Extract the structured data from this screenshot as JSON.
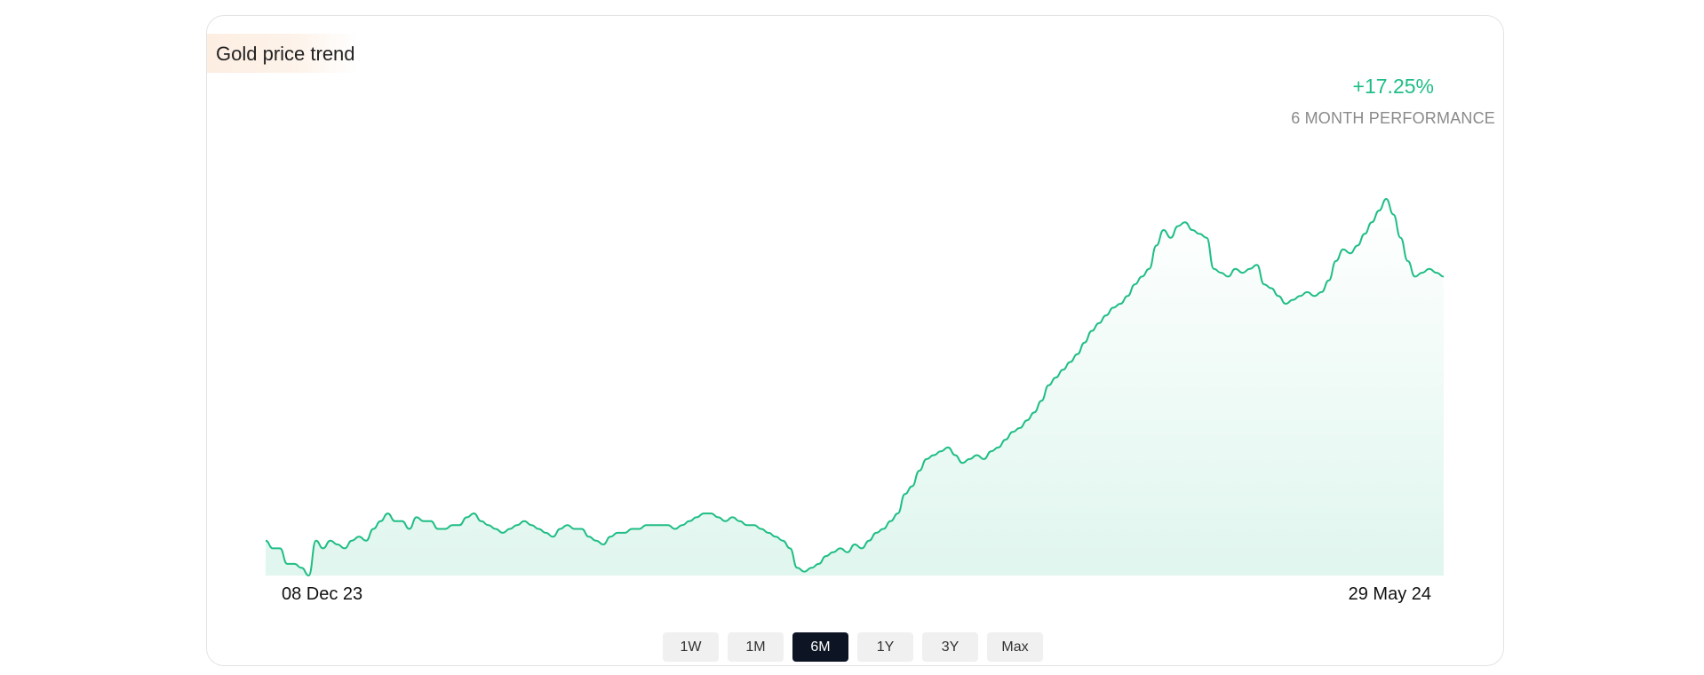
{
  "header": {
    "title": "Gold price trend",
    "performance_value": "+17.25%",
    "performance_label": "6 MONTH PERFORMANCE"
  },
  "colors": {
    "line": "#1fbe84",
    "positive": "#1fbe84",
    "active_range_bg": "#0d1524"
  },
  "range_selector": {
    "options": [
      "1W",
      "1M",
      "6M",
      "1Y",
      "3Y",
      "Max"
    ],
    "selected": "6M"
  },
  "chart_data": {
    "type": "area",
    "x_labels": [
      "08 Dec 23",
      "29 May 24"
    ],
    "series_normalized_note": "values read as relative price level, 0 = lowest point, 100 = highest point",
    "values": [
      12,
      10,
      10,
      6,
      6,
      5,
      3,
      12,
      10,
      12,
      11,
      10,
      12,
      13,
      12,
      15,
      17,
      19,
      17,
      17,
      15,
      18,
      17,
      17,
      15,
      15,
      16,
      16,
      18,
      19,
      17,
      16,
      15,
      14,
      15,
      16,
      17,
      16,
      15,
      14,
      13,
      15,
      16,
      15,
      15,
      13,
      12,
      11,
      13,
      14,
      14,
      15,
      15,
      16,
      16,
      16,
      16,
      15,
      16,
      17,
      18,
      19,
      19,
      18,
      17,
      18,
      17,
      16,
      16,
      15,
      14,
      13,
      12,
      10,
      5,
      4,
      5,
      6,
      8,
      9,
      10,
      9,
      11,
      10,
      12,
      14,
      15,
      17,
      19,
      24,
      26,
      30,
      33,
      34,
      35,
      36,
      34,
      32,
      33,
      34,
      33,
      35,
      36,
      38,
      40,
      41,
      43,
      45,
      48,
      52,
      54,
      56,
      58,
      60,
      63,
      66,
      68,
      70,
      72,
      73,
      75,
      78,
      80,
      82,
      88,
      92,
      90,
      93,
      94,
      92,
      91,
      90,
      82,
      81,
      80,
      82,
      81,
      82,
      83,
      78,
      77,
      75,
      73,
      74,
      75,
      76,
      75,
      76,
      79,
      84,
      87,
      86,
      88,
      91,
      94,
      97,
      100,
      96,
      90,
      84,
      80,
      81,
      82,
      81,
      80
    ],
    "grid": false,
    "legend": "none"
  }
}
